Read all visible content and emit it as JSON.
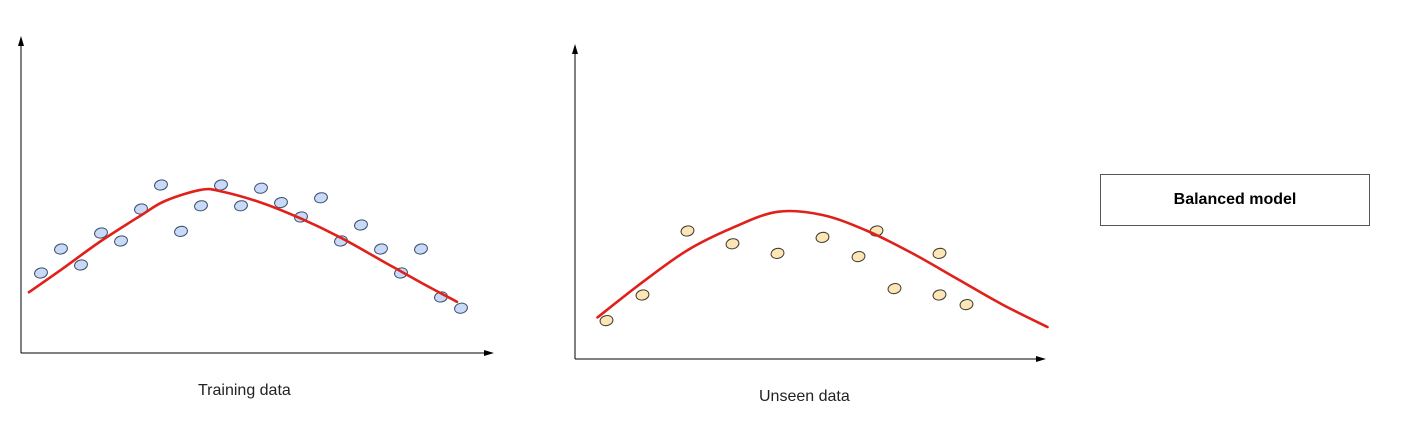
{
  "panels": [
    {
      "caption": "Training data",
      "point_fill": "#c9daf8",
      "point_stroke": "#3c4f6b",
      "points": [
        [
          0.5,
          2.5
        ],
        [
          1,
          3.25
        ],
        [
          1.5,
          2.75
        ],
        [
          2,
          3.75
        ],
        [
          2.5,
          3.5
        ],
        [
          3,
          4.5
        ],
        [
          3.5,
          5.25
        ],
        [
          4,
          3.8
        ],
        [
          4.5,
          4.6
        ],
        [
          5,
          5.25
        ],
        [
          5.5,
          4.6
        ],
        [
          6,
          5.15
        ],
        [
          6.5,
          4.7
        ],
        [
          7,
          4.25
        ],
        [
          7.5,
          4.85
        ],
        [
          8,
          3.5
        ],
        [
          8.5,
          4.0
        ],
        [
          9,
          3.25
        ],
        [
          9.5,
          2.5
        ],
        [
          10,
          3.25
        ],
        [
          10.5,
          1.75
        ],
        [
          11,
          1.4
        ]
      ],
      "curve": [
        [
          0.2,
          1.9
        ],
        [
          1,
          2.6
        ],
        [
          2,
          3.5
        ],
        [
          3,
          4.3
        ],
        [
          3.6,
          4.75
        ],
        [
          4.5,
          5.1
        ],
        [
          5,
          5.05
        ],
        [
          6,
          4.7
        ],
        [
          7,
          4.2
        ],
        [
          8,
          3.6
        ],
        [
          9,
          2.9
        ],
        [
          10,
          2.2
        ],
        [
          10.9,
          1.6
        ]
      ],
      "curve_color": "#e0201b"
    },
    {
      "caption": "Unseen data",
      "point_fill": "#fde6b6",
      "point_stroke": "#3d3a30",
      "points": [
        [
          0.7,
          1.2
        ],
        [
          1.5,
          2.0
        ],
        [
          2.5,
          4.0
        ],
        [
          3.5,
          3.6
        ],
        [
          4.5,
          3.3
        ],
        [
          5.5,
          3.8
        ],
        [
          6.3,
          3.2
        ],
        [
          6.7,
          4.0
        ],
        [
          7.1,
          2.2
        ],
        [
          8.1,
          3.3
        ],
        [
          8.1,
          2.0
        ],
        [
          8.7,
          1.7
        ]
      ],
      "curve": [
        [
          0.5,
          1.3
        ],
        [
          1.5,
          2.4
        ],
        [
          2.5,
          3.4
        ],
        [
          3.5,
          4.1
        ],
        [
          4.5,
          4.6
        ],
        [
          5.5,
          4.5
        ],
        [
          6.5,
          4.0
        ],
        [
          7.5,
          3.3
        ],
        [
          8.5,
          2.5
        ],
        [
          9.5,
          1.7
        ],
        [
          10.5,
          1.0
        ]
      ],
      "curve_color": "#e0201b"
    }
  ],
  "legend": {
    "label": "Balanced model"
  }
}
